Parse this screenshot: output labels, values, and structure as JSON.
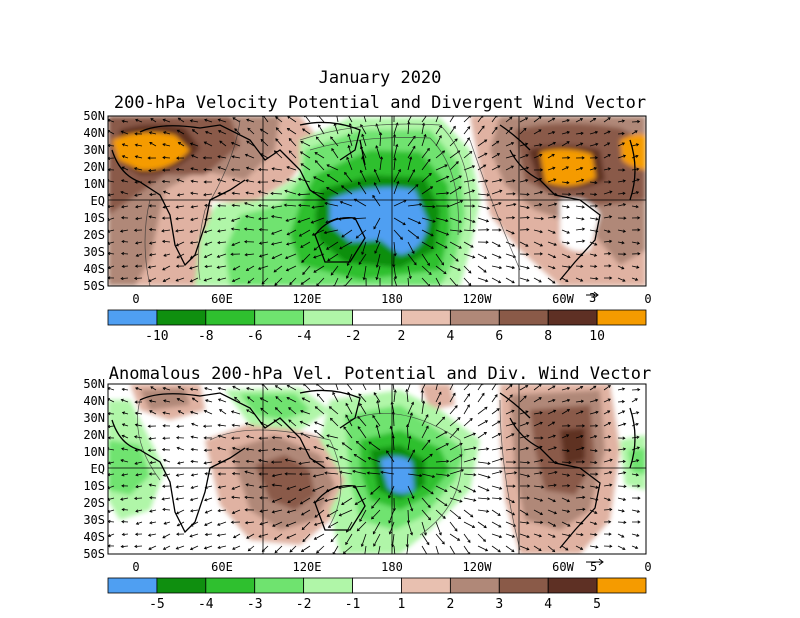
{
  "header": {
    "month": "January 2020",
    "panel1_title": "200-hPa Velocity Potential and Divergent Wind Vector",
    "panel2_title": "Anomalous 200-hPa Vel. Potential and Div. Wind Vector"
  },
  "axes": {
    "lat_labels": [
      "50N",
      "40N",
      "30N",
      "20N",
      "10N",
      "EQ",
      "10S",
      "20S",
      "30S",
      "40S",
      "50S"
    ],
    "lon_labels": [
      "0",
      "60E",
      "120E",
      "180",
      "120W",
      "60W",
      "0"
    ]
  },
  "panel1": {
    "ref_vector": "3",
    "colorbar": {
      "labels": [
        "-10",
        "-8",
        "-6",
        "-4",
        "-2",
        "2",
        "4",
        "6",
        "8",
        "10"
      ],
      "colors": [
        "#4f9ff2",
        "#0f8f0f",
        "#2fc02f",
        "#6fe36f",
        "#b0f6a8",
        "#ffffff",
        "#e8c0b0",
        "#b08878",
        "#8a5a48",
        "#5e3024",
        "#f59b00"
      ]
    }
  },
  "panel2": {
    "ref_vector": "5",
    "colorbar": {
      "labels": [
        "-5",
        "-4",
        "-3",
        "-2",
        "-1",
        "1",
        "2",
        "3",
        "4",
        "5"
      ],
      "colors": [
        "#4f9ff2",
        "#0f8f0f",
        "#2fc02f",
        "#6fe36f",
        "#b0f6a8",
        "#ffffff",
        "#e8c0b0",
        "#b08878",
        "#8a5a48",
        "#5e3024",
        "#f59b00"
      ]
    }
  },
  "palette": {
    "blue": "#4f9ff2",
    "green_dark": "#0f8f0f",
    "green_mid": "#2fc02f",
    "green_light": "#6fe36f",
    "green_pale": "#b0f6a8",
    "brown_pale": "#e0b2a2",
    "brown_mid": "#b08878",
    "brown_dark": "#8a5a48",
    "brown_darkest": "#5e3024",
    "orange": "#f59b00"
  }
}
